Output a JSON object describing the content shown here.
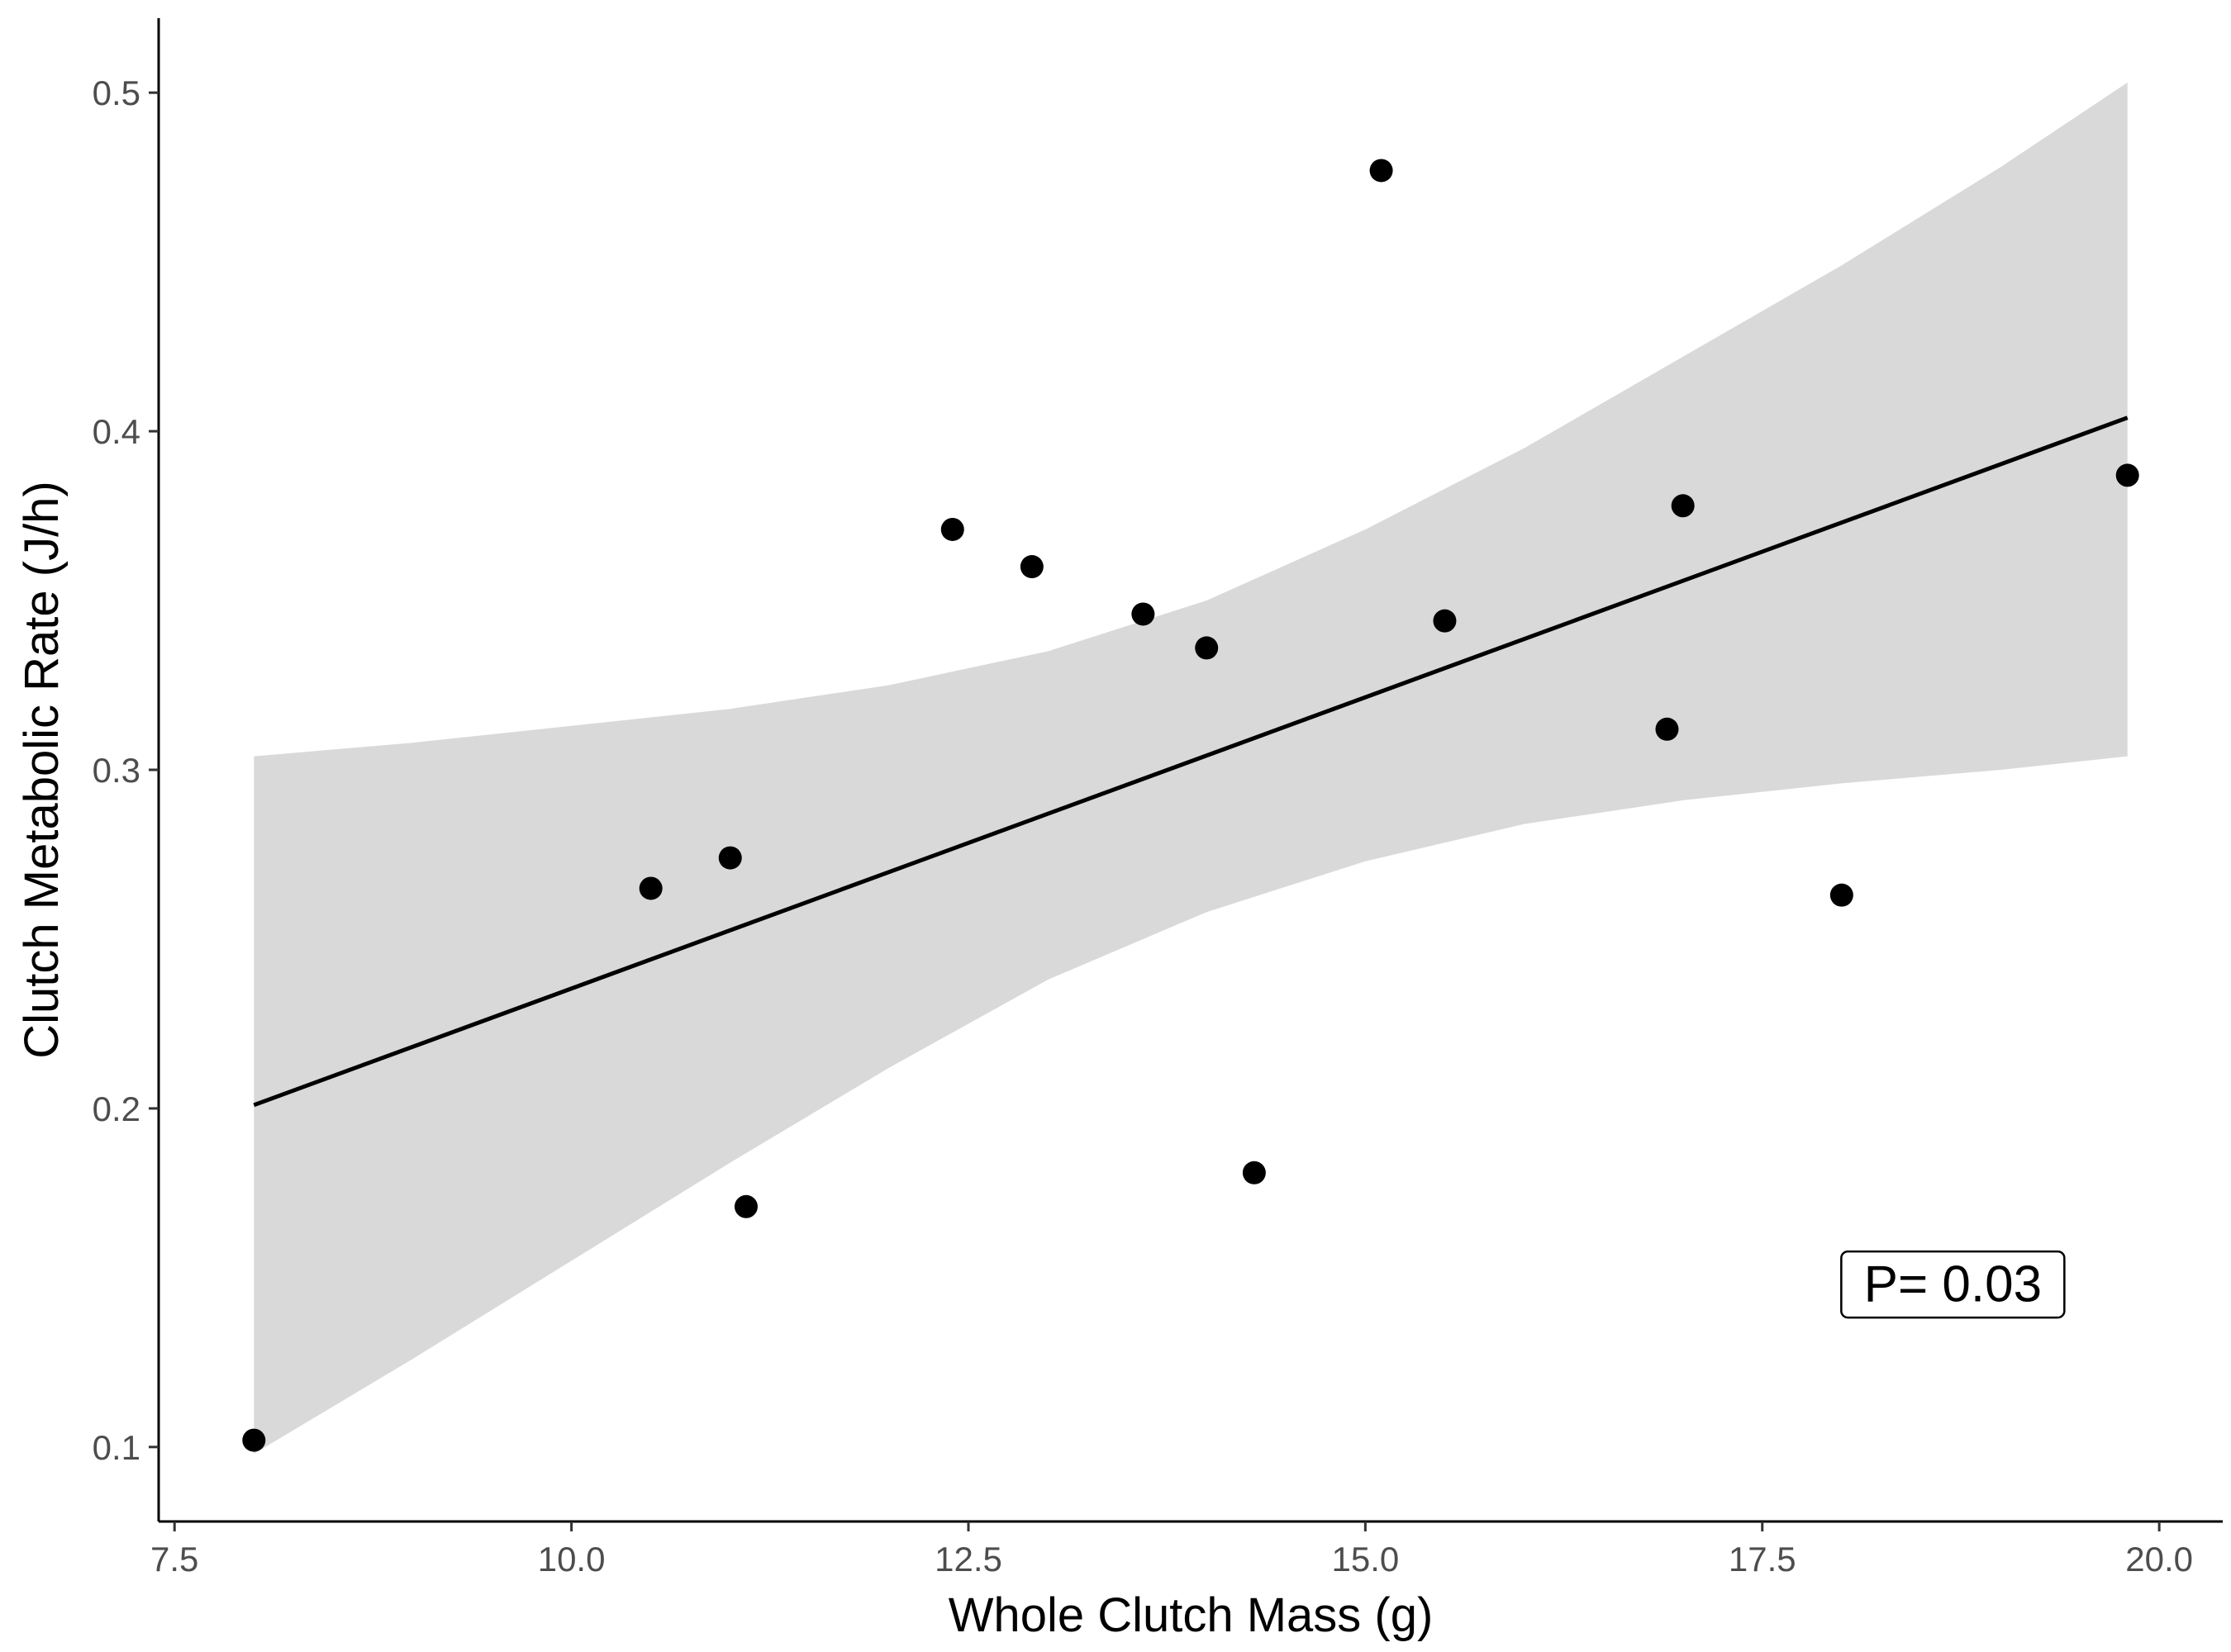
{
  "chart_data": {
    "type": "scatter",
    "title": "",
    "xlabel": "Whole Clutch Mass (g)",
    "ylabel": "Clutch Metabolic Rate (J/h)",
    "xlim": [
      7.4,
      20.4
    ],
    "ylim": [
      0.078,
      0.522
    ],
    "x_ticks": [
      7.5,
      10.0,
      12.5,
      15.0,
      17.5,
      20.0
    ],
    "x_tick_labels": [
      "7.5",
      "10.0",
      "12.5",
      "15.0",
      "17.5",
      "20.0"
    ],
    "y_ticks": [
      0.1,
      0.2,
      0.3,
      0.4,
      0.5
    ],
    "y_tick_labels": [
      "0.1",
      "0.2",
      "0.3",
      "0.4",
      "0.5"
    ],
    "grid": false,
    "legend": "none",
    "points": [
      {
        "x": 8.0,
        "y": 0.102
      },
      {
        "x": 10.5,
        "y": 0.265
      },
      {
        "x": 11.0,
        "y": 0.274
      },
      {
        "x": 11.1,
        "y": 0.171
      },
      {
        "x": 12.4,
        "y": 0.371
      },
      {
        "x": 12.9,
        "y": 0.36
      },
      {
        "x": 13.6,
        "y": 0.346
      },
      {
        "x": 14.0,
        "y": 0.336
      },
      {
        "x": 14.3,
        "y": 0.181
      },
      {
        "x": 15.1,
        "y": 0.477
      },
      {
        "x": 15.5,
        "y": 0.344
      },
      {
        "x": 16.9,
        "y": 0.312
      },
      {
        "x": 17.0,
        "y": 0.378
      },
      {
        "x": 18.0,
        "y": 0.263
      },
      {
        "x": 19.8,
        "y": 0.387
      }
    ],
    "fit_line": {
      "x": [
        8.0,
        19.8
      ],
      "y": [
        0.201,
        0.404
      ]
    },
    "confidence_band": {
      "x": [
        8.0,
        9.0,
        10.0,
        11.0,
        12.0,
        13.0,
        14.0,
        15.0,
        16.0,
        17.0,
        18.0,
        19.0,
        19.8
      ],
      "upper": [
        0.304,
        0.308,
        0.313,
        0.318,
        0.325,
        0.335,
        0.35,
        0.371,
        0.395,
        0.422,
        0.449,
        0.478,
        0.503
      ],
      "lower": [
        0.098,
        0.126,
        0.155,
        0.184,
        0.212,
        0.238,
        0.258,
        0.273,
        0.284,
        0.291,
        0.296,
        0.3,
        0.304
      ]
    },
    "annotation": {
      "text": "P= 0.03",
      "x": 18.7,
      "y": 0.148
    },
    "colors": {
      "points": "#000000",
      "line": "#000000",
      "band": "#d9d9d9",
      "axis": "#000000"
    }
  }
}
